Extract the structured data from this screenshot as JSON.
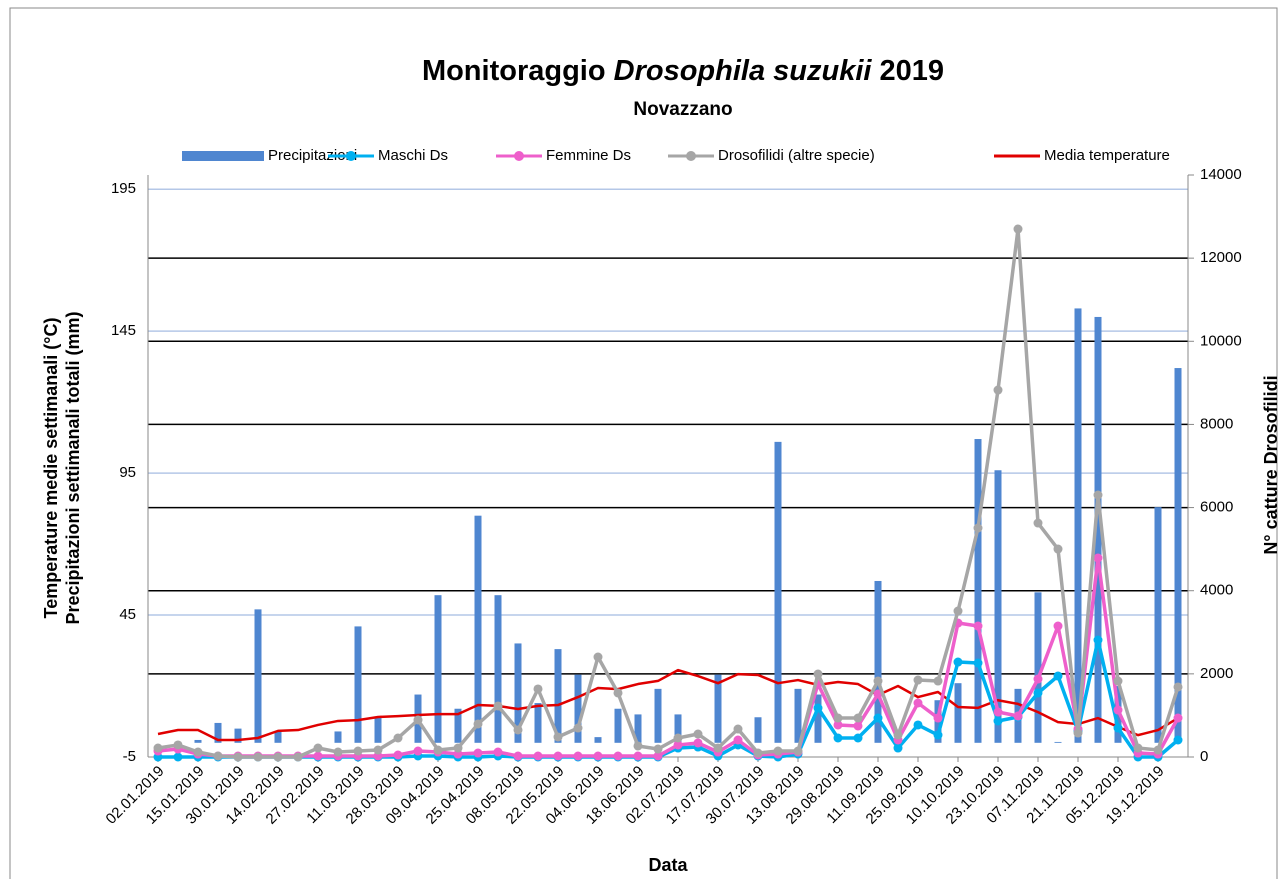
{
  "chart_data": {
    "type": "combo",
    "title_parts": [
      "Monitoraggio",
      "Drosophila suzukii",
      "2019"
    ],
    "subtitle": "Novazzano",
    "ylabel": [
      "Temperature medie settimanali (°C)",
      "Precipitazioni settimanali totali (mm)"
    ],
    "y2label": "N° catture Drosofilidi",
    "xlabel": "Data",
    "categories": [
      "02.01.2019",
      null,
      "15.01.2019",
      null,
      "30.01.2019",
      null,
      "14.02.2019",
      null,
      "27.02.2019",
      null,
      "11.03.2019",
      null,
      "28.03.2019",
      null,
      "09.04.2019",
      null,
      "25.04.2019",
      null,
      "08.05.2019",
      null,
      "22.05.2019",
      null,
      "04.06.2019",
      null,
      "18.06.2019",
      null,
      "02.07.2019",
      null,
      "17.07.2019",
      null,
      "30.07.2019",
      null,
      "13.08.2019",
      null,
      "29.08.2019",
      null,
      "11.09.2019",
      null,
      "25.09.2019",
      null,
      "10.10.2019",
      null,
      "23.10.2019",
      null,
      "07.11.2019",
      null,
      "21.11.2019",
      null,
      "05.12.2019",
      null,
      "19.12.2019",
      null
    ],
    "ylim": [
      -5,
      200
    ],
    "yticks": [
      -5,
      45,
      95,
      145,
      195
    ],
    "y2lim": [
      0,
      14000
    ],
    "y2ticks": [
      0,
      2000,
      4000,
      6000,
      8000,
      10000,
      12000,
      14000
    ],
    "grid": true,
    "series": [
      {
        "name": "Precipitazioni",
        "kind": "bar",
        "color": "#4f86d0",
        "values": [
          0,
          0,
          1,
          7,
          5,
          47,
          4,
          0,
          0,
          4,
          41,
          9,
          0,
          17,
          52,
          12,
          80,
          52,
          35,
          14,
          33,
          24,
          2,
          12,
          10,
          19,
          10,
          0,
          24,
          0,
          9,
          106,
          19,
          17,
          0,
          0,
          57,
          0,
          0,
          15,
          21,
          107,
          96,
          19,
          53,
          0.3,
          153,
          150,
          20,
          0,
          83,
          132
        ]
      },
      {
        "name": "Maschi Ds",
        "kind": "line",
        "axis": "y2",
        "color": "#00b0f0",
        "values": [
          0,
          0,
          0,
          0,
          0,
          0,
          0,
          0,
          0,
          0,
          0,
          0,
          0,
          24,
          24,
          0,
          0,
          24,
          0,
          0,
          0,
          0,
          0,
          0,
          0,
          0,
          216,
          240,
          24,
          289,
          24,
          0,
          72,
          1178,
          457,
          457,
          938,
          216,
          770,
          529,
          2285,
          2261,
          866,
          962,
          1540,
          1948,
          625,
          2814,
          697,
          0,
          0,
          409
        ]
      },
      {
        "name": "Femmine Ds",
        "kind": "line",
        "axis": "y2",
        "color": "#ee5fcb",
        "values": [
          144,
          192,
          72,
          24,
          24,
          24,
          24,
          24,
          24,
          24,
          24,
          24,
          48,
          144,
          120,
          72,
          96,
          120,
          24,
          24,
          24,
          24,
          24,
          24,
          24,
          24,
          290,
          337,
          120,
          409,
          48,
          72,
          120,
          1756,
          770,
          746,
          1515,
          409,
          1299,
          938,
          3223,
          3151,
          1082,
          986,
          1876,
          3151,
          673,
          4786,
          1130,
          96,
          72,
          938
        ]
      },
      {
        "name": "Drosofilidi (altre specie)",
        "kind": "line",
        "axis": "y2",
        "color": "#a6a6a6",
        "values": [
          216,
          290,
          120,
          24,
          0,
          0,
          0,
          0,
          216,
          120,
          144,
          168,
          457,
          890,
          168,
          216,
          794,
          1227,
          650,
          1636,
          481,
          697,
          2405,
          1540,
          265,
          192,
          457,
          553,
          216,
          673,
          96,
          144,
          144,
          1996,
          938,
          938,
          1828,
          529,
          1852,
          1828,
          3511,
          5508,
          8827,
          12700,
          5628,
          5002,
          577,
          6301,
          1828,
          216,
          168,
          1684
        ]
      },
      {
        "name": "Media temperature",
        "kind": "line",
        "marker": false,
        "color": "#e00000",
        "values": [
          3.1,
          4.5,
          4.5,
          1,
          1,
          1.7,
          4.2,
          4.5,
          6.3,
          7.7,
          8,
          9.1,
          9.4,
          9.8,
          10.1,
          10.1,
          13.3,
          13,
          11.9,
          13,
          13.3,
          16.1,
          19.3,
          18.9,
          20.7,
          21.8,
          25.6,
          23.5,
          21,
          24.2,
          23.9,
          21,
          22.1,
          20.4,
          21.4,
          20.7,
          16.8,
          20,
          16.1,
          17.9,
          12.6,
          12.3,
          15,
          13.7,
          10.8,
          7.3,
          6.6,
          8.7,
          5.6,
          2.7,
          4.5,
          8.7
        ]
      }
    ]
  }
}
